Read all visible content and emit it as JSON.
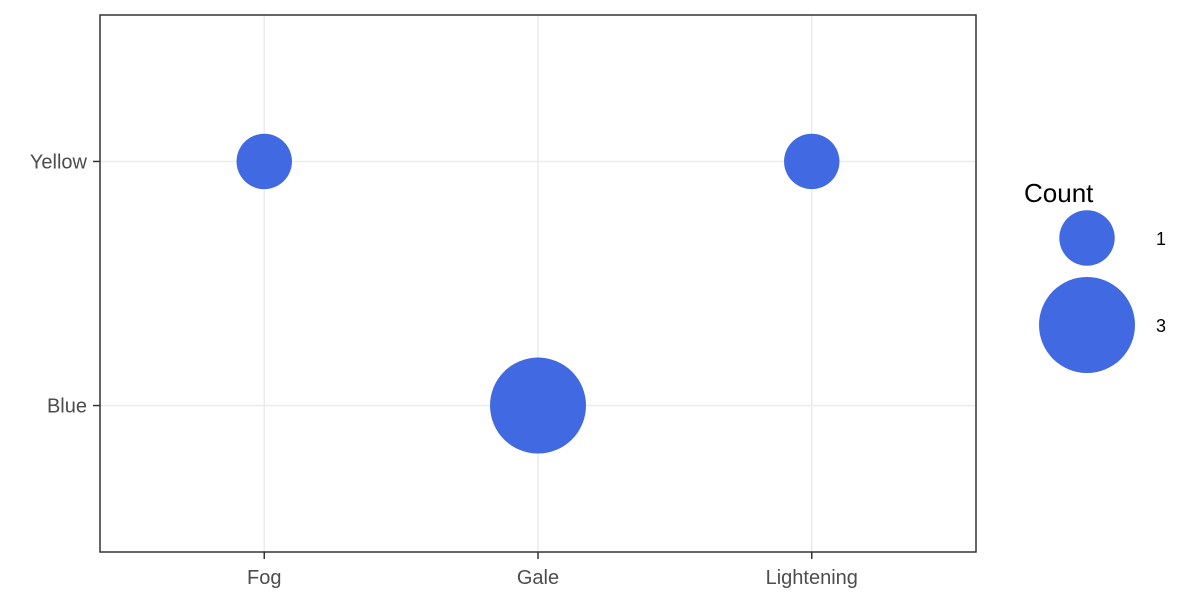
{
  "chart_data": {
    "type": "scatter",
    "title": "",
    "xlabel": "",
    "ylabel": "",
    "x_categories": [
      "Fog",
      "Gale",
      "Lightening"
    ],
    "y_categories": [
      "Blue",
      "Yellow"
    ],
    "points": [
      {
        "x": "Fog",
        "y": "Yellow",
        "count": 1
      },
      {
        "x": "Gale",
        "y": "Blue",
        "count": 3
      },
      {
        "x": "Lightening",
        "y": "Yellow",
        "count": 1
      }
    ],
    "size_legend": {
      "title": "Count",
      "entries": [
        {
          "value": 1,
          "label": "1"
        },
        {
          "value": 3,
          "label": "3"
        }
      ]
    },
    "colors": {
      "point": "#4169E1",
      "grid": "#ebebeb",
      "panel_border": "#333333",
      "tick": "#333333"
    },
    "grid": true,
    "legend_position": "right"
  }
}
